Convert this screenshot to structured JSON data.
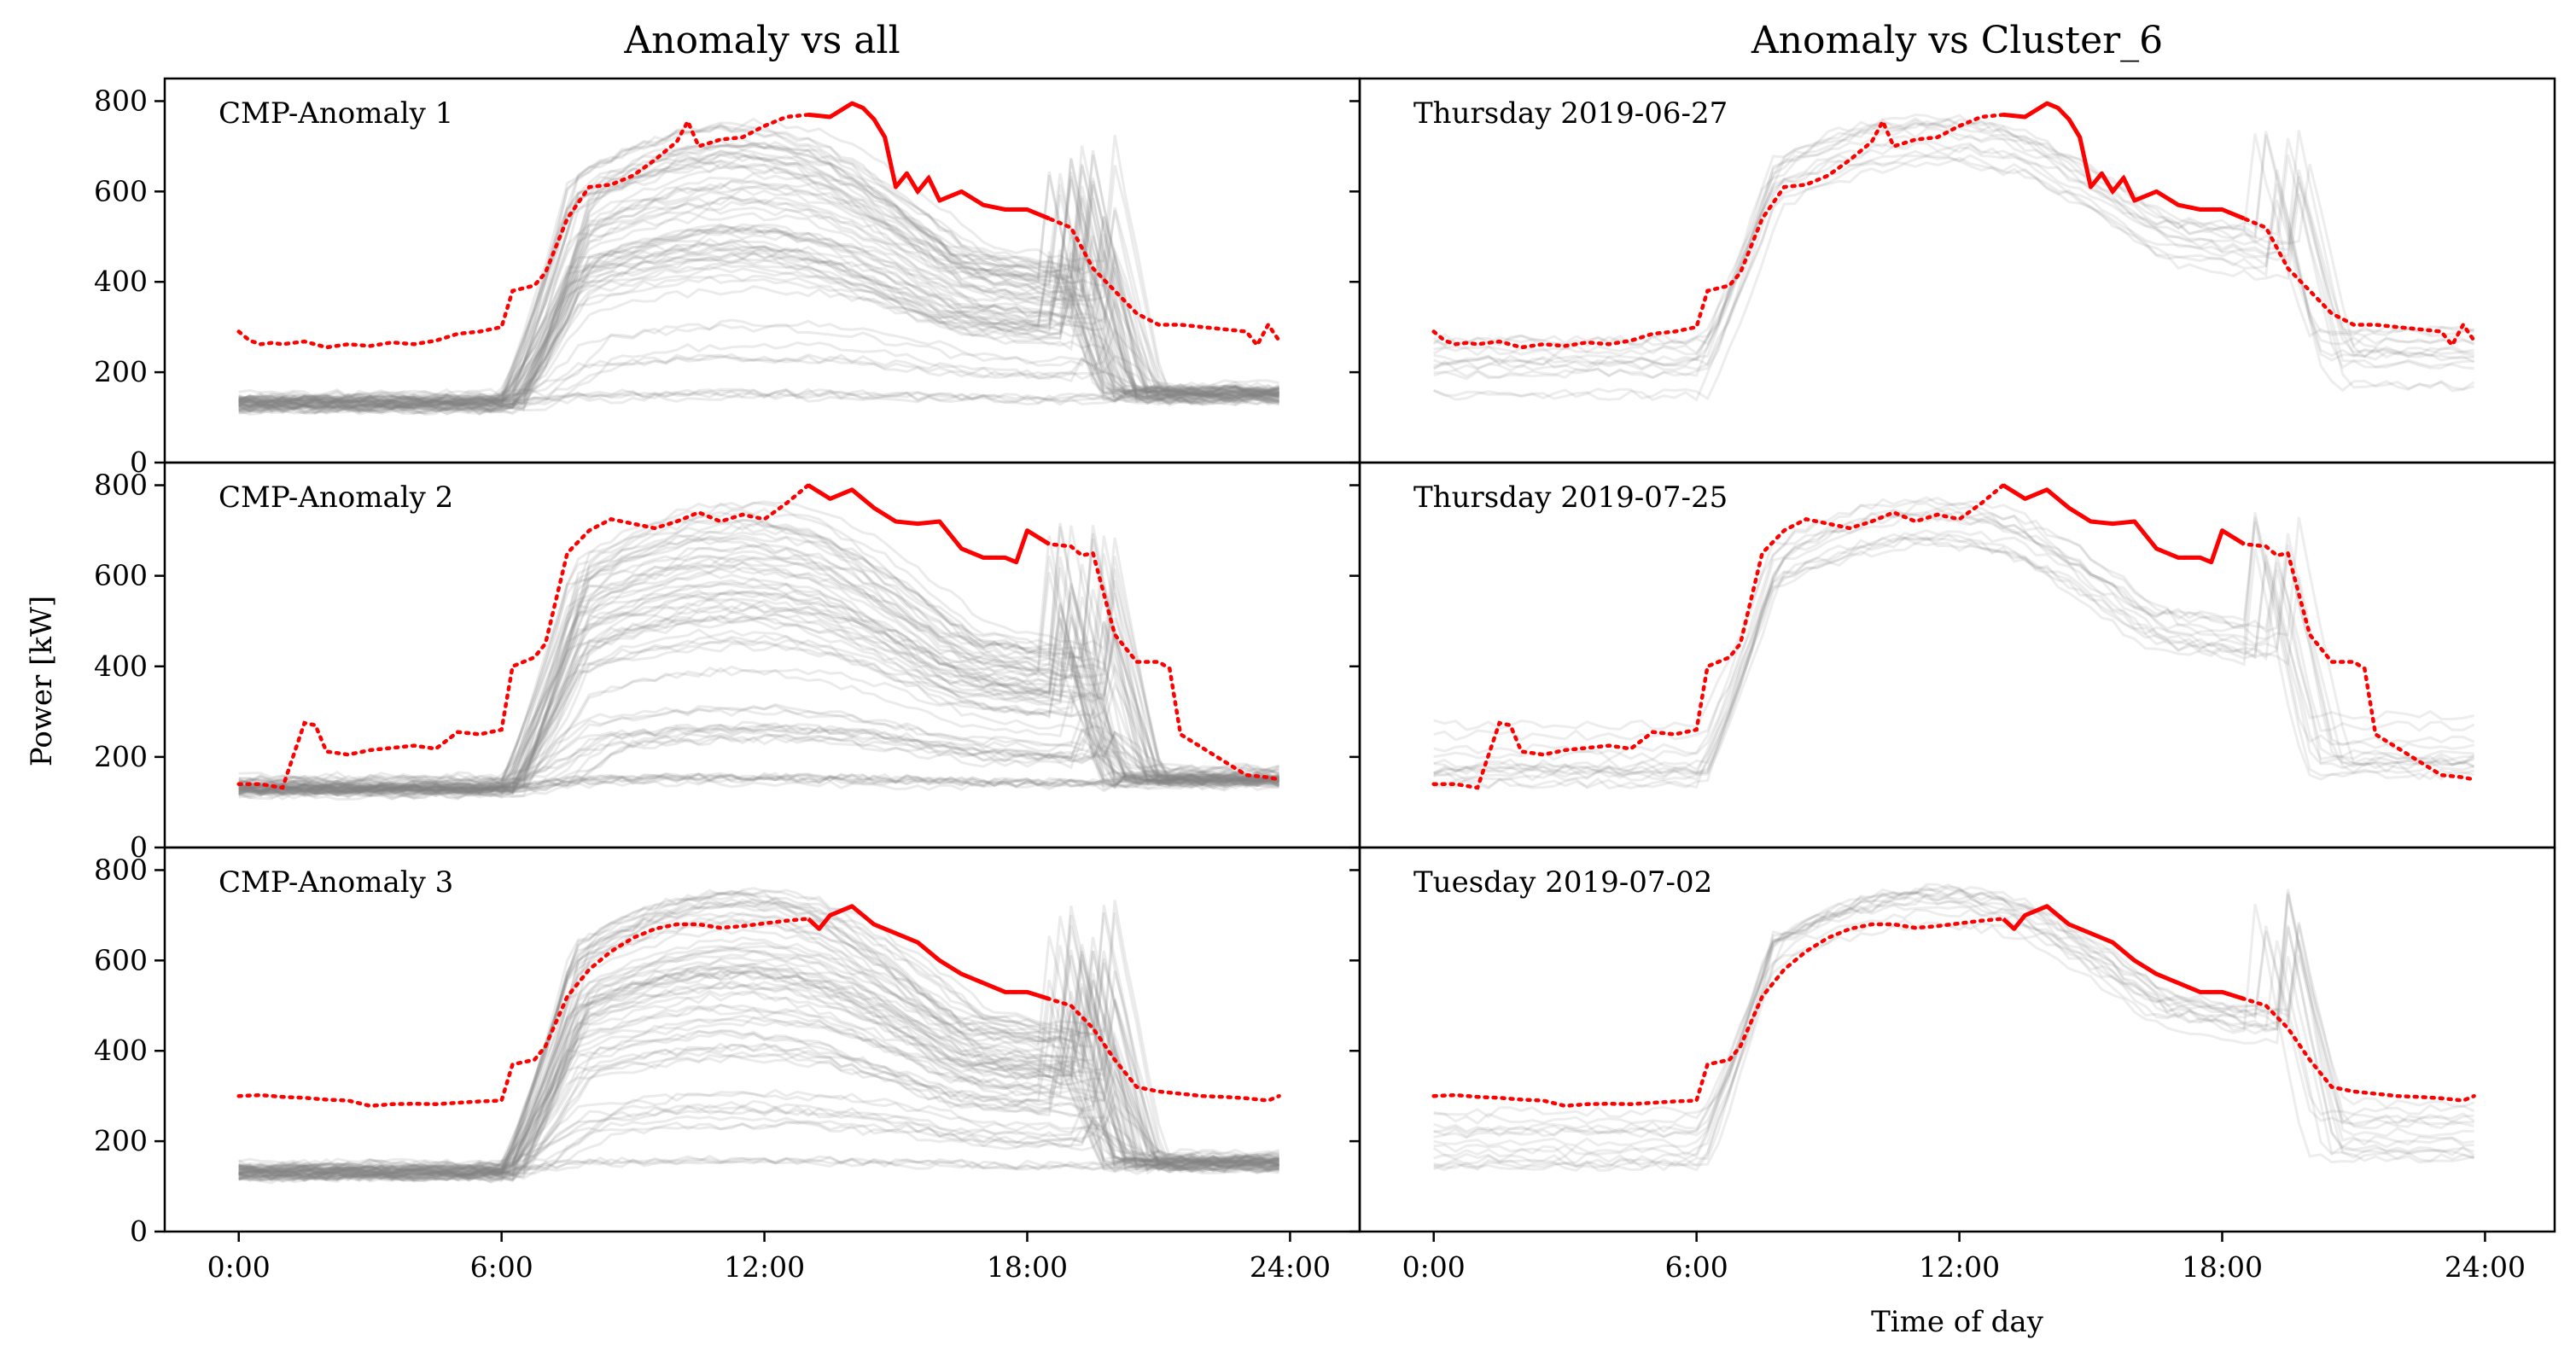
{
  "chart_data": {
    "type": "line",
    "column_titles": [
      "Anomaly vs all",
      "Anomaly vs Cluster_6"
    ],
    "ylabel": "Power [kW]",
    "xlabel": "Time of day",
    "ylim": [
      0,
      850
    ],
    "yticks": [
      "0",
      "200",
      "400",
      "600",
      "800"
    ],
    "xlim": [
      -1.3,
      25.2
    ],
    "xticks": [
      {
        "h": 0,
        "label": "0:00"
      },
      {
        "h": 6,
        "label": "6:00"
      },
      {
        "h": 12,
        "label": "12:00"
      },
      {
        "h": 18,
        "label": "18:00"
      },
      {
        "h": 24,
        "label": "24:00"
      }
    ],
    "colors": {
      "anomaly": "#ff0000",
      "background": "#808080"
    },
    "anomalies": [
      {
        "left_label": "CMP-Anomaly 1",
        "right_label": "Thursday 2019-06-27",
        "anomalous_window": [
          13.0,
          18.5
        ],
        "points": [
          [
            0,
            290
          ],
          [
            0.25,
            270
          ],
          [
            0.5,
            262
          ],
          [
            0.75,
            265
          ],
          [
            1,
            262
          ],
          [
            1.5,
            268
          ],
          [
            2,
            255
          ],
          [
            2.5,
            262
          ],
          [
            3,
            258
          ],
          [
            3.5,
            266
          ],
          [
            4,
            262
          ],
          [
            4.5,
            270
          ],
          [
            5,
            285
          ],
          [
            5.5,
            290
          ],
          [
            6,
            300
          ],
          [
            6.25,
            380
          ],
          [
            6.75,
            392
          ],
          [
            7,
            420
          ],
          [
            7.5,
            540
          ],
          [
            8,
            610
          ],
          [
            8.5,
            615
          ],
          [
            9,
            635
          ],
          [
            9.5,
            670
          ],
          [
            10,
            710
          ],
          [
            10.25,
            755
          ],
          [
            10.5,
            700
          ],
          [
            11,
            715
          ],
          [
            11.5,
            720
          ],
          [
            12,
            745
          ],
          [
            12.5,
            765
          ],
          [
            13,
            770
          ],
          [
            13.5,
            765
          ],
          [
            14,
            795
          ],
          [
            14.25,
            785
          ],
          [
            14.5,
            760
          ],
          [
            14.75,
            720
          ],
          [
            15,
            610
          ],
          [
            15.25,
            640
          ],
          [
            15.5,
            600
          ],
          [
            15.75,
            630
          ],
          [
            16,
            580
          ],
          [
            16.5,
            600
          ],
          [
            17,
            570
          ],
          [
            17.5,
            560
          ],
          [
            18,
            560
          ],
          [
            18.5,
            540
          ],
          [
            19,
            520
          ],
          [
            19.5,
            430
          ],
          [
            20,
            380
          ],
          [
            20.5,
            330
          ],
          [
            21,
            305
          ],
          [
            21.5,
            305
          ],
          [
            22,
            300
          ],
          [
            22.5,
            295
          ],
          [
            23,
            290
          ],
          [
            23.25,
            260
          ],
          [
            23.5,
            305
          ],
          [
            23.75,
            270
          ]
        ]
      },
      {
        "left_label": "CMP-Anomaly 2",
        "right_label": "Thursday 2019-07-25",
        "anomalous_window": [
          13.0,
          18.5
        ],
        "points": [
          [
            0,
            140
          ],
          [
            0.5,
            140
          ],
          [
            1,
            132
          ],
          [
            1.5,
            275
          ],
          [
            1.75,
            270
          ],
          [
            2,
            212
          ],
          [
            2.5,
            205
          ],
          [
            3,
            215
          ],
          [
            3.5,
            220
          ],
          [
            4,
            225
          ],
          [
            4.5,
            218
          ],
          [
            5,
            255
          ],
          [
            5.5,
            250
          ],
          [
            6,
            260
          ],
          [
            6.25,
            400
          ],
          [
            6.75,
            420
          ],
          [
            7,
            450
          ],
          [
            7.5,
            650
          ],
          [
            8,
            700
          ],
          [
            8.5,
            725
          ],
          [
            9,
            715
          ],
          [
            9.5,
            705
          ],
          [
            10,
            720
          ],
          [
            10.5,
            740
          ],
          [
            11,
            720
          ],
          [
            11.5,
            735
          ],
          [
            12,
            725
          ],
          [
            12.5,
            760
          ],
          [
            13,
            800
          ],
          [
            13.5,
            770
          ],
          [
            14,
            790
          ],
          [
            14.5,
            750
          ],
          [
            15,
            720
          ],
          [
            15.5,
            715
          ],
          [
            16,
            720
          ],
          [
            16.5,
            660
          ],
          [
            17,
            640
          ],
          [
            17.5,
            640
          ],
          [
            17.75,
            630
          ],
          [
            18,
            700
          ],
          [
            18.5,
            670
          ],
          [
            19,
            665
          ],
          [
            19.25,
            645
          ],
          [
            19.5,
            650
          ],
          [
            20,
            470
          ],
          [
            20.5,
            410
          ],
          [
            21,
            410
          ],
          [
            21.25,
            395
          ],
          [
            21.5,
            250
          ],
          [
            22,
            220
          ],
          [
            22.5,
            190
          ],
          [
            23,
            160
          ],
          [
            23.5,
            155
          ],
          [
            23.75,
            150
          ]
        ]
      },
      {
        "left_label": "CMP-Anomaly 3",
        "right_label": "Tuesday 2019-07-02",
        "anomalous_window": [
          13.0,
          18.5
        ],
        "points": [
          [
            0,
            300
          ],
          [
            0.5,
            302
          ],
          [
            1,
            298
          ],
          [
            1.5,
            296
          ],
          [
            2,
            292
          ],
          [
            2.5,
            290
          ],
          [
            3,
            278
          ],
          [
            3.5,
            282
          ],
          [
            4,
            283
          ],
          [
            4.5,
            282
          ],
          [
            5,
            285
          ],
          [
            5.5,
            288
          ],
          [
            6,
            290
          ],
          [
            6.25,
            370
          ],
          [
            6.75,
            380
          ],
          [
            7,
            410
          ],
          [
            7.5,
            520
          ],
          [
            8,
            580
          ],
          [
            8.5,
            620
          ],
          [
            9,
            650
          ],
          [
            9.5,
            670
          ],
          [
            10,
            680
          ],
          [
            10.5,
            680
          ],
          [
            11,
            672
          ],
          [
            11.5,
            676
          ],
          [
            12,
            682
          ],
          [
            12.5,
            688
          ],
          [
            13,
            692
          ],
          [
            13.25,
            670
          ],
          [
            13.5,
            700
          ],
          [
            14,
            720
          ],
          [
            14.5,
            680
          ],
          [
            15,
            660
          ],
          [
            15.5,
            640
          ],
          [
            16,
            600
          ],
          [
            16.5,
            570
          ],
          [
            17,
            550
          ],
          [
            17.5,
            530
          ],
          [
            18,
            530
          ],
          [
            18.5,
            515
          ],
          [
            19,
            500
          ],
          [
            19.5,
            450
          ],
          [
            20,
            380
          ],
          [
            20.5,
            320
          ],
          [
            21,
            310
          ],
          [
            21.5,
            305
          ],
          [
            22,
            300
          ],
          [
            22.5,
            298
          ],
          [
            23,
            295
          ],
          [
            23.5,
            290
          ],
          [
            23.75,
            300
          ]
        ]
      }
    ]
  }
}
